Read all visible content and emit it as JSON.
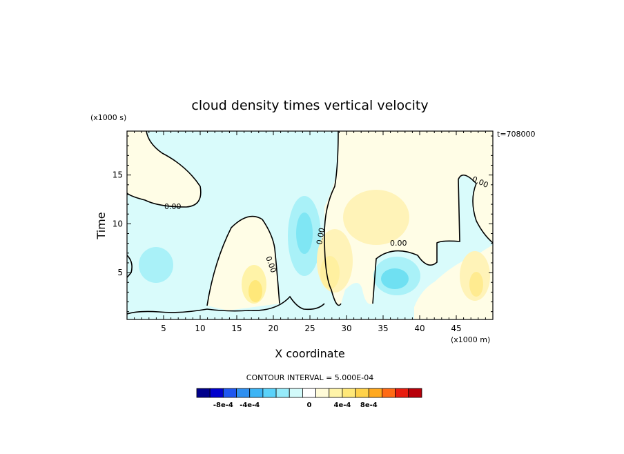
{
  "chart_data": {
    "type": "heatmap",
    "title": "cloud density times vertical velocity",
    "xlabel": "X coordinate",
    "ylabel": "Time",
    "x_units": "(x1000 m)",
    "y_units": "(x1000 s)",
    "time_stamp": "t=708000",
    "xlim": [
      0,
      50
    ],
    "ylim": [
      0.2,
      19.5
    ],
    "x_ticks": [
      "5",
      "10",
      "15",
      "20",
      "25",
      "30",
      "35",
      "40",
      "45"
    ],
    "y_ticks": [
      "5",
      "10",
      "15"
    ],
    "contour_interval_label": "CONTOUR INTERVAL = 5.000E-04",
    "contour_labels": [
      "0.00",
      "0.00",
      "0.00",
      "0.00",
      "0.00"
    ],
    "colorbar": {
      "tick_labels": [
        "-8e-4",
        "-4e-4",
        "0",
        "4e-4",
        "8e-4"
      ],
      "colors": [
        "#00008b",
        "#0000cd",
        "#1e56f0",
        "#2e8ff0",
        "#3cb4f5",
        "#5ad2fa",
        "#96ebfa",
        "#d2fafa",
        "#ffffff",
        "#fffbd8",
        "#fff4a8",
        "#ffe878",
        "#ffd24a",
        "#ffa81e",
        "#ff6a14",
        "#e81c0e",
        "#b8000a"
      ]
    },
    "regions": [
      {
        "sign": "negative",
        "x": [
          0,
          50
        ],
        "y": [
          0.5,
          19.5
        ],
        "level": "-2.5e-5"
      },
      {
        "sign": "positive",
        "x": [
          1.5,
          9.5
        ],
        "y": [
          12,
          19.5
        ],
        "level": "2.5e-5"
      },
      {
        "sign": "positive",
        "x": [
          29,
          50
        ],
        "y": [
          5,
          19.5
        ],
        "level": "2.5e-5"
      },
      {
        "sign": "negative",
        "x": [
          24,
          27
        ],
        "y": [
          6,
          12
        ],
        "level": "-2.5e-4"
      },
      {
        "sign": "negative",
        "x": [
          34,
          39
        ],
        "y": [
          2.5,
          5.5
        ],
        "level": "-4e-4"
      },
      {
        "sign": "negative",
        "x": [
          2,
          6
        ],
        "y": [
          4,
          7
        ],
        "level": "-2.5e-4"
      },
      {
        "sign": "positive",
        "x": [
          16,
          19
        ],
        "y": [
          2,
          5
        ],
        "level": "4e-4"
      },
      {
        "sign": "positive",
        "x": [
          27,
          32
        ],
        "y": [
          3,
          8
        ],
        "level": "2.5e-4"
      },
      {
        "sign": "positive",
        "x": [
          32,
          37
        ],
        "y": [
          9,
          13
        ],
        "level": "2.5e-4"
      },
      {
        "sign": "positive",
        "x": [
          45,
          49
        ],
        "y": [
          2,
          7
        ],
        "level": "2.5e-4"
      }
    ]
  }
}
